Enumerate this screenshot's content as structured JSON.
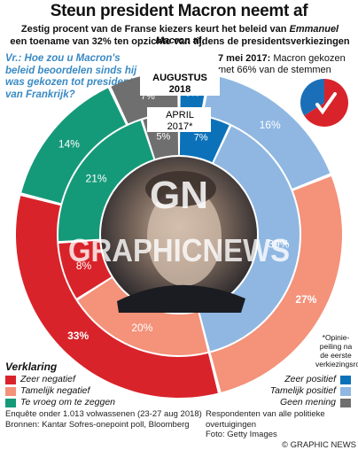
{
  "header": {
    "title": "Steun president Macron neemt af",
    "subtitle_1": "Zestig procent van de Franse kiezers keurt het beleid van",
    "subtitle_1_name": "Emmanuel Macron",
    "subtitle_1_end": "af,",
    "subtitle_2": "een toename van 32% ten opzichte van tijdens de presidentsverkiezingen"
  },
  "question": "Vr.: Hoe zou u Macron's beleid beoordelen sinds hij was gekozen tot president van Frankrijk?",
  "may_note": {
    "date": "7 mei 2017:",
    "text": "Macron gekozen met 66% van de stemmen"
  },
  "footnote": "*Opinie-peiling na de eerste verkiezingsronde",
  "watermark": {
    "logo": "GN",
    "text": "GRAPHICNEWS"
  },
  "legend": {
    "title": "Verklaring",
    "negative": [
      {
        "label": "Zeer negatief",
        "color": "#d9232a"
      },
      {
        "label": "Tamelijk negatief",
        "color": "#f4927a"
      },
      {
        "label": "Te vroeg om te zeggen",
        "color": "#159a79"
      }
    ],
    "positive": [
      {
        "label": "Zeer positief",
        "color": "#0b72ba"
      },
      {
        "label": "Tamelijk positief",
        "color": "#8fb7e2"
      },
      {
        "label": "Geen mening",
        "color": "#6f6f6f"
      }
    ]
  },
  "footer": {
    "left_1": "Enquête onder 1.013 volwassenen (23-27 aug 2018)",
    "left_2": "Bronnen: Kantar Sofres-onepoint poll, Bloomberg",
    "right_1": "Respondenten van alle politieke overtuigingen",
    "right_2": "Foto: Getty Images",
    "right_3": "© GRAPHIC NEWS"
  },
  "chart_data": {
    "type": "pie",
    "subtype": "concentric-donut",
    "categories": [
      "Zeer positief",
      "Tamelijk positief",
      "Tamelijk negatief",
      "Zeer negatief",
      "Te vroeg om te zeggen",
      "Geen mening"
    ],
    "colors": [
      "#0b72ba",
      "#8fb7e2",
      "#f4927a",
      "#d9232a",
      "#159a79",
      "#6f6f6f"
    ],
    "series": [
      {
        "name": "AUGUSTUS 2018",
        "ring": "outer",
        "values": [
          3,
          16,
          27,
          33,
          14,
          7
        ]
      },
      {
        "name": "APRIL 2017*",
        "ring": "inner",
        "values": [
          7,
          39,
          20,
          8,
          21,
          5
        ]
      }
    ],
    "election_pie": {
      "values": [
        66,
        34
      ],
      "colors": [
        "#d9232a",
        "#1b6fb8"
      ]
    }
  }
}
